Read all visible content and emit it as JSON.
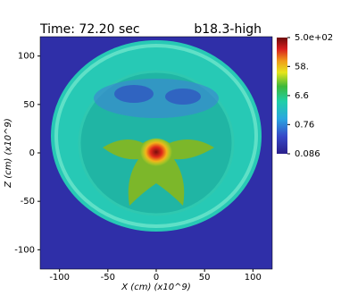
{
  "chart_data": {
    "type": "heatmap",
    "title": "Time: 72.20 sec",
    "subtitle": "b18.3-high",
    "xlabel": "X (cm) (x10^9)",
    "ylabel": "Z (cm) (x10^9)",
    "xlim": [
      -120,
      120
    ],
    "ylim": [
      -120,
      120
    ],
    "xticks": [
      -100,
      -50,
      0,
      50,
      100
    ],
    "yticks": [
      -100,
      -50,
      0,
      50,
      100
    ],
    "colorbar": {
      "scale": "log",
      "lim": [
        0.086,
        500
      ],
      "ticks": [
        {
          "value": 500,
          "label": "5.0e+02"
        },
        {
          "value": 58,
          "label": "58."
        },
        6.6,
        0.76,
        0.086
      ]
    }
  }
}
